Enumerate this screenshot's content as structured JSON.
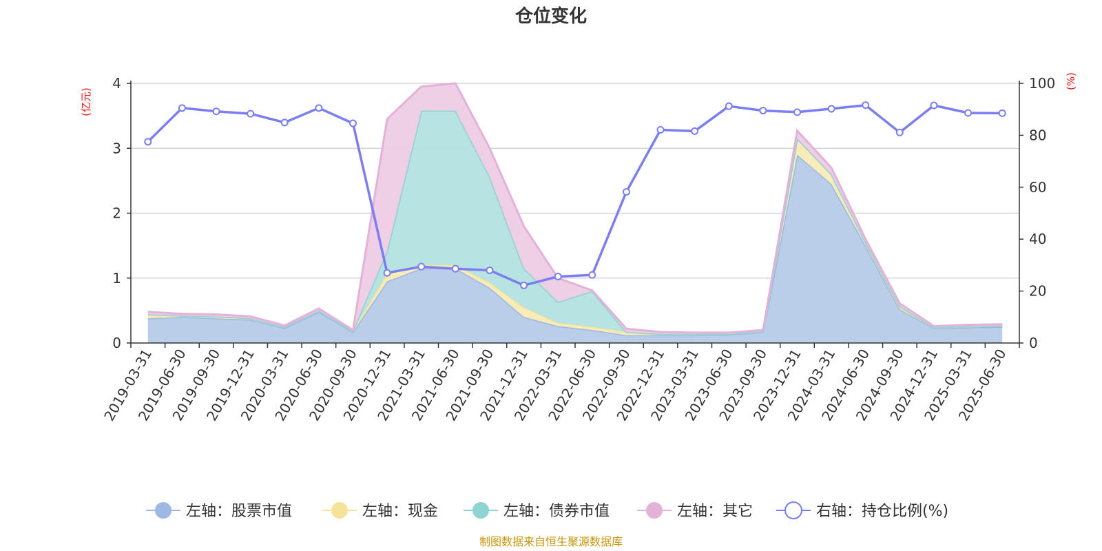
{
  "chart_data": {
    "type": "area",
    "title": "仓位变化",
    "left_axis_unit": "(亿元)",
    "right_axis_unit": "(%)",
    "source": "制图数据来自恒生聚源数据库",
    "ylim_left": [
      0,
      4
    ],
    "ylim_right": [
      0,
      100
    ],
    "yticks_left": [
      "0",
      "1",
      "2",
      "3",
      "4"
    ],
    "yticks_right": [
      "0",
      "20",
      "40",
      "60",
      "80",
      "100"
    ],
    "grid": true,
    "legend_position": "bottom",
    "categories": [
      "2019-03-31",
      "2019-06-30",
      "2019-09-30",
      "2019-12-31",
      "2020-03-31",
      "2020-06-30",
      "2020-09-30",
      "2020-12-31",
      "2021-03-31",
      "2021-06-30",
      "2021-09-30",
      "2021-12-31",
      "2022-03-31",
      "2022-06-30",
      "2022-09-30",
      "2022-12-31",
      "2023-03-31",
      "2023-06-30",
      "2023-09-30",
      "2023-12-31",
      "2024-03-31",
      "2024-06-30",
      "2024-09-30",
      "2024-12-31",
      "2025-03-31",
      "2025-06-30"
    ],
    "stacked_series": [
      {
        "name": "左轴：股票市值",
        "color": "#9db8e2",
        "fill": "#b6cbe8",
        "values": [
          0.38,
          0.4,
          0.38,
          0.36,
          0.23,
          0.48,
          0.17,
          0.95,
          1.15,
          1.15,
          0.85,
          0.4,
          0.26,
          0.2,
          0.12,
          0.12,
          0.12,
          0.13,
          0.17,
          2.9,
          2.45,
          1.5,
          0.52,
          0.23,
          0.24,
          0.25
        ]
      },
      {
        "name": "左轴：现金",
        "color": "#f5e39a",
        "fill": "#f8ebb5",
        "values": [
          0.06,
          0.02,
          0.03,
          0.02,
          0.02,
          0.02,
          0.02,
          0.12,
          0.05,
          0.05,
          0.08,
          0.15,
          0.05,
          0.05,
          0.05,
          0.02,
          0.02,
          0.01,
          0.01,
          0.25,
          0.15,
          0.05,
          0.03,
          0.01,
          0.02,
          0.02
        ]
      },
      {
        "name": "左轴：债券市值",
        "color": "#8fd3d3",
        "fill": "#b3e1e1",
        "values": [
          0,
          0,
          0,
          0,
          0,
          0,
          0,
          0.35,
          2.38,
          2.38,
          1.63,
          0.6,
          0.32,
          0.55,
          0,
          0,
          0,
          0,
          0,
          0,
          0,
          0,
          0.02,
          0,
          0,
          0
        ]
      },
      {
        "name": "左轴：其它",
        "color": "#e4b2d8",
        "fill": "#edcce4",
        "values": [
          0.04,
          0.03,
          0.03,
          0.03,
          0.02,
          0.03,
          0.01,
          2.03,
          0.37,
          0.42,
          0.44,
          0.65,
          0.37,
          0.01,
          0.05,
          0.03,
          0.02,
          0.02,
          0.02,
          0.12,
          0.1,
          0.05,
          0.04,
          0.02,
          0.02,
          0.02
        ]
      }
    ],
    "line_series": {
      "name": "右轴：持仓比例(%)",
      "color": "#7a7ef2",
      "values": [
        77.5,
        90.5,
        89.2,
        88.3,
        84.9,
        90.5,
        84.6,
        27.0,
        29.4,
        28.6,
        28.0,
        22.2,
        25.6,
        26.2,
        58.2,
        82.1,
        81.6,
        91.2,
        89.5,
        88.9,
        90.2,
        91.6,
        81.1,
        91.5,
        88.6,
        88.5
      ]
    }
  }
}
